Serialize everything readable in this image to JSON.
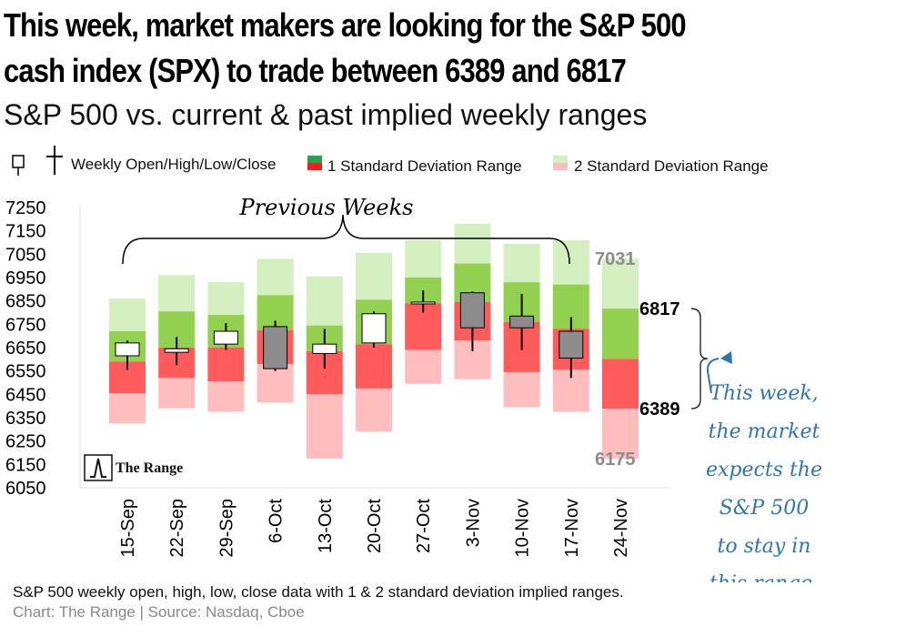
{
  "headline": {
    "line1": "This week, market makers are looking for the S&P 500",
    "line2": "cash index (SPX) to trade between  6389 and 6817"
  },
  "subtitle": "S&P 500 vs. current & past implied weekly ranges",
  "legend": {
    "ohlc": "Weekly Open/High/Low/Close",
    "sd1": "1 Standard Deviation Range",
    "sd2": "2 Standard Deviation Range"
  },
  "colors": {
    "sd1_up": "#92d050",
    "sd1_down": "#ff5b5b",
    "sd2_up": "#d3eebf",
    "sd2_down": "#ffbdbd",
    "candle_up": "#ffffff",
    "candle_down": "#8c8c8c",
    "annotation": "#2e75b6"
  },
  "chart_data": {
    "type": "candlestick-with-ranges",
    "ylim": [
      6050,
      7250
    ],
    "yticks": [
      7250,
      7150,
      7050,
      6950,
      6850,
      6750,
      6650,
      6550,
      6450,
      6350,
      6250,
      6150,
      6050
    ],
    "categories": [
      "15-Sep",
      "22-Sep",
      "29-Sep",
      "6-Oct",
      "13-Oct",
      "20-Oct",
      "27-Oct",
      "3-Nov",
      "10-Nov",
      "17-Nov",
      "24-Nov"
    ],
    "sd2_high": [
      6860,
      6960,
      6930,
      7030,
      6955,
      7055,
      7110,
      7180,
      7095,
      7110,
      7031
    ],
    "sd1_high": [
      6720,
      6805,
      6790,
      6875,
      6745,
      6855,
      6950,
      7010,
      6930,
      6920,
      6817
    ],
    "mid": [
      6590,
      6650,
      6650,
      6725,
      6635,
      6665,
      6840,
      6845,
      6760,
      6730,
      6602
    ],
    "sd1_low": [
      6455,
      6520,
      6505,
      6580,
      6450,
      6475,
      6640,
      6680,
      6545,
      6555,
      6389
    ],
    "sd2_low": [
      6325,
      6390,
      6375,
      6415,
      6175,
      6290,
      6495,
      6515,
      6395,
      6375,
      6175
    ],
    "ohlc": [
      {
        "open": 6615,
        "high": 6680,
        "low": 6555,
        "close": 6670
      },
      {
        "open": 6630,
        "high": 6695,
        "low": 6575,
        "close": 6645
      },
      {
        "open": 6665,
        "high": 6755,
        "low": 6640,
        "close": 6720
      },
      {
        "open": 6740,
        "high": 6765,
        "low": 6550,
        "close": 6560
      },
      {
        "open": 6625,
        "high": 6730,
        "low": 6560,
        "close": 6665
      },
      {
        "open": 6670,
        "high": 6805,
        "low": 6650,
        "close": 6795
      },
      {
        "open": 6840,
        "high": 6895,
        "low": 6800,
        "close": 6845
      },
      {
        "open": 6885,
        "high": 6890,
        "low": 6635,
        "close": 6735
      },
      {
        "open": 6785,
        "high": 6880,
        "low": 6640,
        "close": 6735
      },
      {
        "open": 6720,
        "high": 6780,
        "low": 6520,
        "close": 6605
      }
    ],
    "range_labels": {
      "sd2_high": "7031",
      "sd1_high": "6817",
      "sd1_low": "6389",
      "sd2_low": "6175"
    }
  },
  "annotations": {
    "previous_weeks": "Previous Weeks",
    "this_week": [
      "This week,",
      "the market",
      "expects the",
      "S&P 500",
      "to stay in",
      "this range."
    ]
  },
  "brand": "The Range",
  "footnote": "S&P 500 weekly open, high, low, close data with  1 & 2 standard deviation implied ranges.",
  "source": "Chart: The Range | Source: Nasdaq, Cboe"
}
